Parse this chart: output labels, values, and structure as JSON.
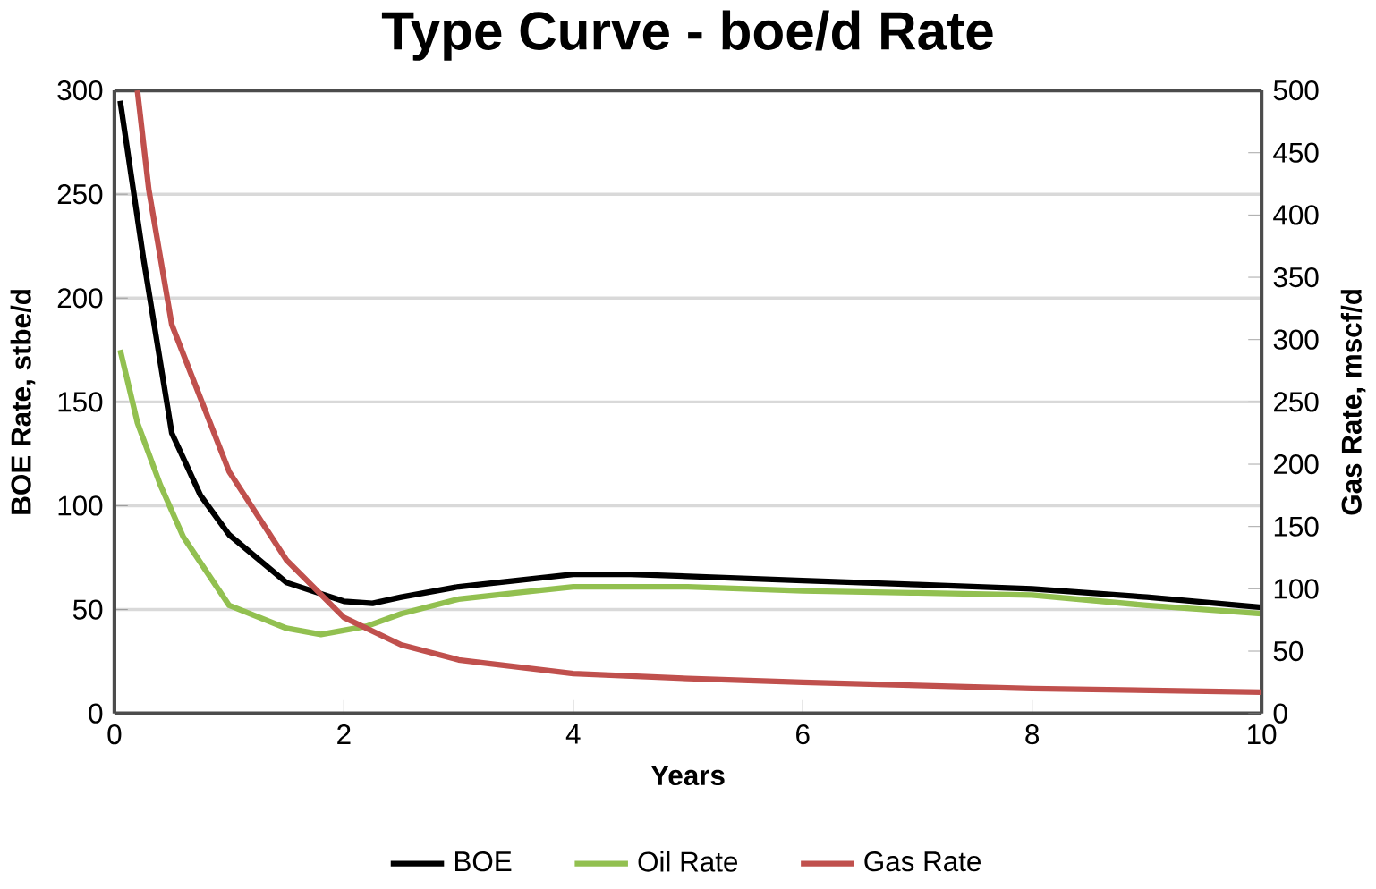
{
  "chart_data": {
    "type": "line",
    "title": "Type Curve - boe/d Rate",
    "xlabel": "Years",
    "ylabel": "BOE Rate, stbe/d",
    "y2label": "Gas Rate, mscf/d",
    "xlim": [
      0,
      10
    ],
    "xticks": [
      0,
      2,
      4,
      6,
      8,
      10
    ],
    "ylim": [
      0,
      300
    ],
    "yticks": [
      0,
      50,
      100,
      150,
      200,
      250,
      300
    ],
    "y2lim": [
      0,
      500
    ],
    "y2ticks": [
      0,
      50,
      100,
      150,
      200,
      250,
      300,
      350,
      400,
      450,
      500
    ],
    "grid": "y",
    "legend": "bottom",
    "marker": "none",
    "line_style": "solid",
    "series": [
      {
        "name": "BOE",
        "color": "#000000",
        "x": [
          0.05,
          0.25,
          0.5,
          0.75,
          1,
          1.5,
          2,
          2.25,
          2.5,
          3,
          3.5,
          4,
          4.5,
          5,
          6,
          7,
          8,
          9,
          10
        ],
        "values": [
          295,
          220,
          135,
          105,
          86,
          63,
          54,
          53,
          56,
          61,
          64,
          67,
          67,
          66,
          64,
          62,
          60,
          56,
          51
        ]
      },
      {
        "name": "Oil Rate",
        "color": "#92c050",
        "x": [
          0.05,
          0.2,
          0.4,
          0.6,
          1,
          1.5,
          1.8,
          2.2,
          2.5,
          3,
          3.5,
          4,
          5,
          6,
          7,
          8,
          9,
          10
        ],
        "values": [
          175,
          140,
          110,
          85,
          52,
          41,
          38,
          42,
          48,
          55,
          58,
          61,
          61,
          59,
          58,
          57,
          52,
          48
        ]
      },
      {
        "name": "Gas Rate",
        "color": "#c0504d",
        "axis": "y2",
        "x": [
          0.2,
          0.3,
          0.5,
          1,
          1.5,
          2,
          2.5,
          3,
          4,
          5,
          6,
          8,
          10
        ],
        "values": [
          500,
          420,
          312,
          194,
          123,
          77,
          55,
          43,
          32,
          28,
          25,
          20,
          17
        ]
      }
    ]
  }
}
